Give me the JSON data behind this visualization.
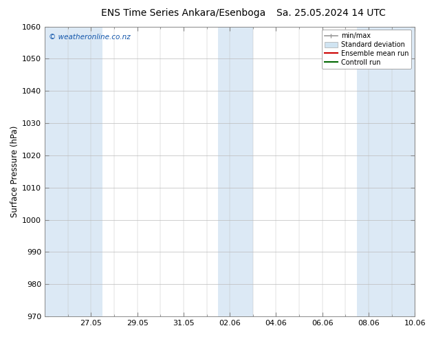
{
  "title": "ENS Time Series Ankara/Esenboga",
  "title2": "Sa. 25.05.2024 14 UTC",
  "ylabel": "Surface Pressure (hPa)",
  "ylim": [
    970,
    1060
  ],
  "yticks": [
    970,
    980,
    990,
    1000,
    1010,
    1020,
    1030,
    1040,
    1050,
    1060
  ],
  "x_min": 0,
  "x_max": 16,
  "xtick_labels": [
    "27.05",
    "29.05",
    "31.05",
    "02.06",
    "04.06",
    "06.06",
    "08.06",
    "10.06"
  ],
  "xtick_positions": [
    2,
    4,
    6,
    8,
    10,
    12,
    14,
    16
  ],
  "shaded_bands": [
    {
      "x_start": 0.0,
      "x_end": 2.5,
      "color": "#dce9f5"
    },
    {
      "x_start": 7.5,
      "x_end": 9.0,
      "color": "#dce9f5"
    },
    {
      "x_start": 13.5,
      "x_end": 16.0,
      "color": "#dce9f5"
    }
  ],
  "watermark": "© weatheronline.co.nz",
  "legend_entries": [
    {
      "label": "min/max",
      "color": "#999999",
      "lw": 1.2
    },
    {
      "label": "Standard deviation",
      "color": "#c8dced",
      "lw": 6
    },
    {
      "label": "Ensemble mean run",
      "color": "#cc0000",
      "lw": 1.5
    },
    {
      "label": "Controll run",
      "color": "#006600",
      "lw": 1.5
    }
  ],
  "bg_color": "#ffffff",
  "plot_bg_color": "#ffffff",
  "grid_color": "#bbbbbb",
  "tick_font_size": 8,
  "label_font_size": 8.5,
  "title_font_size": 10,
  "watermark_color": "#1155aa",
  "watermark_size": 7.5
}
